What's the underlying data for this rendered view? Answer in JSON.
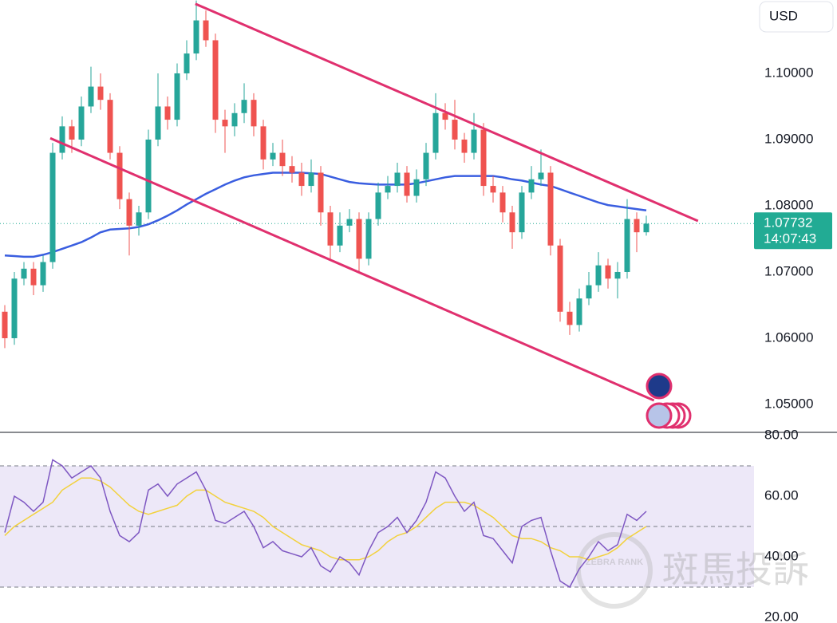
{
  "chart_data": {
    "type": "candlestick",
    "currency": "USD",
    "up_color": "#26a69a",
    "down_color": "#ef5350",
    "open": [
      1.064,
      1.06,
      1.069,
      1.0705,
      1.068,
      1.0715,
      1.088,
      1.092,
      1.09,
      1.095,
      1.098,
      1.096,
      1.088,
      1.081,
      1.077,
      1.079,
      1.09,
      1.095,
      1.093,
      1.1,
      1.103,
      1.108,
      1.105,
      1.093,
      1.092,
      1.094,
      1.096,
      1.092,
      1.087,
      1.088,
      1.086,
      1.085,
      1.083,
      1.085,
      1.079,
      1.074,
      1.077,
      1.078,
      1.072,
      1.078,
      1.082,
      1.083,
      1.085,
      1.0815,
      1.084,
      1.088,
      1.094,
      1.093,
      1.09,
      1.088,
      1.0915,
      1.083,
      1.082,
      1.079,
      1.076,
      1.082,
      1.084,
      1.085,
      1.074,
      1.064,
      1.062,
      1.066,
      1.068,
      1.071,
      1.069,
      1.07,
      1.078,
      1.076
    ],
    "high": [
      1.065,
      1.07,
      1.0715,
      1.0715,
      1.0725,
      1.0895,
      1.0935,
      1.093,
      1.0965,
      1.101,
      1.1,
      1.097,
      1.089,
      1.082,
      1.08,
      1.0915,
      1.1,
      1.0965,
      1.1015,
      1.105,
      1.111,
      1.1095,
      1.106,
      1.0945,
      1.0955,
      1.0985,
      1.097,
      1.093,
      1.0895,
      1.09,
      1.0875,
      1.0865,
      1.087,
      1.086,
      1.08,
      1.079,
      1.0795,
      1.079,
      1.079,
      1.0835,
      1.0845,
      1.0865,
      1.086,
      1.0855,
      1.0895,
      1.097,
      1.0955,
      1.096,
      1.091,
      1.094,
      1.0925,
      1.0845,
      1.083,
      1.08,
      1.083,
      1.086,
      1.0885,
      1.086,
      1.075,
      1.0655,
      1.0675,
      1.07,
      1.073,
      1.072,
      1.0715,
      1.081,
      1.079,
      1.0785
    ],
    "low": [
      1.0585,
      1.059,
      1.068,
      1.0665,
      1.067,
      1.0705,
      1.087,
      1.088,
      1.089,
      1.094,
      1.0945,
      1.087,
      1.0795,
      1.0725,
      1.0755,
      1.078,
      1.089,
      1.0915,
      1.092,
      1.099,
      1.102,
      1.104,
      1.091,
      1.088,
      1.0905,
      1.0925,
      1.0905,
      1.0855,
      1.086,
      1.0845,
      1.0835,
      1.0815,
      1.082,
      1.077,
      1.072,
      1.073,
      1.076,
      1.07,
      1.071,
      1.077,
      1.081,
      1.082,
      1.0805,
      1.0805,
      1.083,
      1.087,
      1.0915,
      1.0885,
      1.0865,
      1.087,
      1.0815,
      1.0805,
      1.0775,
      1.0735,
      1.075,
      1.081,
      1.083,
      1.0725,
      1.0625,
      1.0605,
      1.061,
      1.065,
      1.067,
      1.0675,
      1.066,
      1.069,
      1.073,
      1.0755
    ],
    "close": [
      1.06,
      1.069,
      1.0705,
      1.068,
      1.0715,
      1.088,
      1.092,
      1.09,
      1.095,
      1.098,
      1.096,
      1.088,
      1.081,
      1.077,
      1.079,
      1.09,
      1.095,
      1.093,
      1.1,
      1.103,
      1.108,
      1.105,
      1.093,
      1.092,
      1.094,
      1.096,
      1.092,
      1.087,
      1.088,
      1.086,
      1.085,
      1.083,
      1.085,
      1.079,
      1.074,
      1.077,
      1.078,
      1.072,
      1.078,
      1.082,
      1.083,
      1.085,
      1.0815,
      1.084,
      1.088,
      1.094,
      1.093,
      1.09,
      1.088,
      1.0915,
      1.083,
      1.082,
      1.079,
      1.076,
      1.082,
      1.084,
      1.085,
      1.074,
      1.064,
      1.062,
      1.066,
      1.068,
      1.071,
      1.069,
      1.07,
      1.078,
      1.076,
      1.0773
    ],
    "ma": {
      "color": "#3a5ee0",
      "values": [
        1.0725,
        1.0724,
        1.0723,
        1.0723,
        1.0726,
        1.073,
        1.0735,
        1.074,
        1.0745,
        1.0752,
        1.076,
        1.0764,
        1.0765,
        1.0766,
        1.0768,
        1.0772,
        1.0778,
        1.0785,
        1.0793,
        1.0802,
        1.081,
        1.0818,
        1.0825,
        1.0832,
        1.0838,
        1.0843,
        1.0846,
        1.0848,
        1.085,
        1.085,
        1.085,
        1.085,
        1.0849,
        1.0848,
        1.0844,
        1.084,
        1.0836,
        1.0834,
        1.0833,
        1.0832,
        1.0832,
        1.0832,
        1.0832,
        1.0834,
        1.0837,
        1.084,
        1.0843,
        1.0845,
        1.0845,
        1.0845,
        1.0845,
        1.0845,
        1.0843,
        1.084,
        1.0838,
        1.0835,
        1.0832,
        1.083,
        1.0825,
        1.082,
        1.0815,
        1.081,
        1.0805,
        1.0801,
        1.0799,
        1.0797,
        1.0795,
        1.0793
      ]
    },
    "trend_lines": [
      {
        "color": "#e0306e",
        "points": [
          [
            19.9,
            1.1105
          ],
          [
            72.4,
            1.0777
          ]
        ]
      },
      {
        "color": "#e0306e",
        "points": [
          [
            4.75,
            1.0902
          ],
          [
            67.8,
            1.0506
          ]
        ]
      }
    ],
    "ylim": [
      1.04578,
      1.11108
    ],
    "yticks": [
      {
        "value": 1.1,
        "label": "1.10000"
      },
      {
        "value": 1.09,
        "label": "1.09000"
      },
      {
        "value": 1.08,
        "label": "1.08000"
      },
      {
        "value": 1.07,
        "label": "1.07000"
      },
      {
        "value": 1.06,
        "label": "1.06000"
      },
      {
        "value": 1.05,
        "label": "1.05000"
      }
    ],
    "last_price": {
      "value": 1.07732,
      "label": "1.07732",
      "countdown": "14:07:43",
      "color": "#22ab94"
    },
    "rsi": {
      "color": "#7e57c2",
      "values": [
        48,
        60,
        58,
        55,
        58,
        72,
        70,
        66,
        68,
        70,
        66,
        55,
        47,
        45,
        48,
        62,
        64,
        60,
        64,
        66,
        68,
        62,
        52,
        51,
        53,
        55,
        50,
        43,
        45,
        42,
        41,
        40,
        43,
        37,
        35,
        40,
        38,
        34,
        42,
        48,
        50,
        53,
        48,
        52,
        58,
        68,
        66,
        60,
        55,
        58,
        47,
        46,
        42,
        38,
        50,
        52,
        53,
        42,
        32,
        30,
        36,
        40,
        45,
        42,
        44,
        54,
        52,
        55
      ]
    },
    "rsi_ma": {
      "color": "#f2d13c",
      "values": [
        47,
        50,
        52,
        54,
        56,
        58,
        62,
        64,
        66,
        66,
        65,
        63,
        60,
        57,
        55,
        54,
        55,
        56,
        57,
        60,
        62,
        62,
        60,
        58,
        57,
        56,
        55,
        53,
        50,
        48,
        46,
        44,
        43,
        42,
        40,
        39,
        39,
        39,
        40,
        42,
        45,
        47,
        48,
        50,
        53,
        56,
        58,
        58,
        58,
        57,
        55,
        53,
        50,
        47,
        46,
        46,
        45,
        43,
        42,
        40,
        40,
        39,
        40,
        41,
        43,
        46,
        48,
        50
      ]
    },
    "rsi_levels": [
      70,
      50,
      30
    ],
    "rsi_ylim": [
      18.16,
      81.05
    ],
    "rsi_yticks": [
      {
        "value": 80,
        "label": "80.00"
      },
      {
        "value": 60,
        "label": "60.00"
      },
      {
        "value": 40,
        "label": "40.00"
      },
      {
        "value": 20,
        "label": "20.00"
      }
    ],
    "watermark": {
      "logo": "ZEBRA RANK",
      "text": "斑馬投訴"
    }
  }
}
